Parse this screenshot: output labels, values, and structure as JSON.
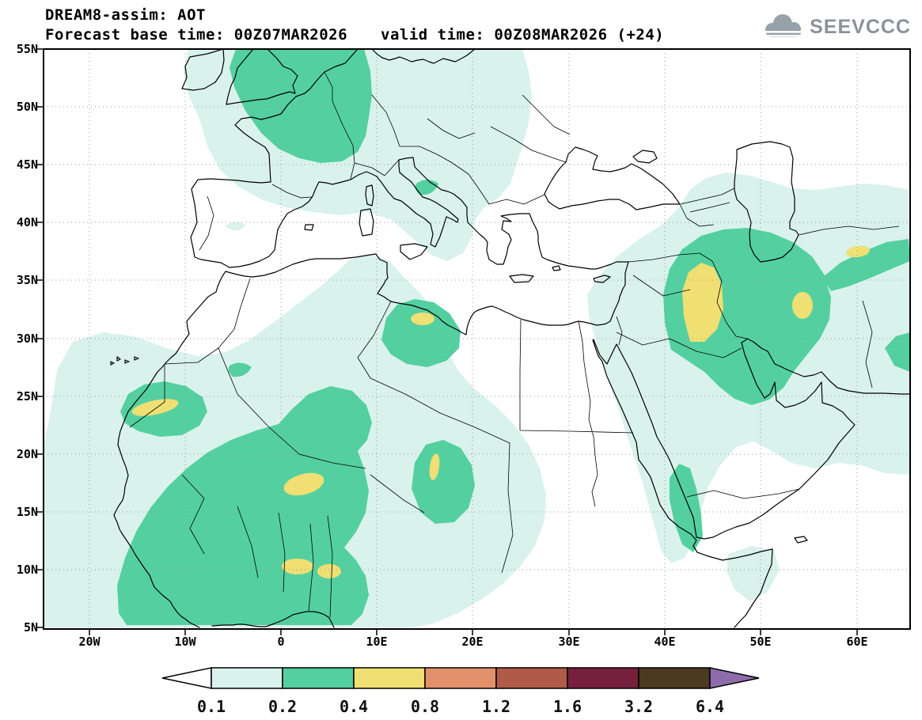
{
  "header": {
    "title": "DREAM8-assim: AOT",
    "forecast_base": "Forecast base time: 00Z07MAR2026",
    "valid_time": "valid time: 00Z08MAR2026 (+24)",
    "logo_text": "SEEVCCC"
  },
  "axes": {
    "lat_labels": [
      "55N",
      "50N",
      "45N",
      "40N",
      "35N",
      "30N",
      "25N",
      "20N",
      "15N",
      "10N",
      "5N"
    ],
    "lon_labels": [
      "20W",
      "10W",
      "0",
      "10E",
      "20E",
      "30E",
      "40E",
      "50E",
      "60E"
    ]
  },
  "colorbar": {
    "values": [
      "0.1",
      "0.2",
      "0.4",
      "0.8",
      "1.2",
      "1.6",
      "3.2",
      "6.4"
    ],
    "below_min_color": "#ffffff",
    "segment_colors": [
      "#d9f2ec",
      "#54d0a0",
      "#f0df72",
      "#e2916a",
      "#b05a49",
      "#77203d",
      "#4a3a20"
    ],
    "above_max_color": "#8e6cab"
  },
  "map": {
    "variable": "AOT",
    "shaded_level_colors": {
      "0.1_to_0.2": "#d9f2ec",
      "0.2_to_0.4": "#54d0a0",
      "0.4_to_0.8": "#f0df72"
    }
  }
}
